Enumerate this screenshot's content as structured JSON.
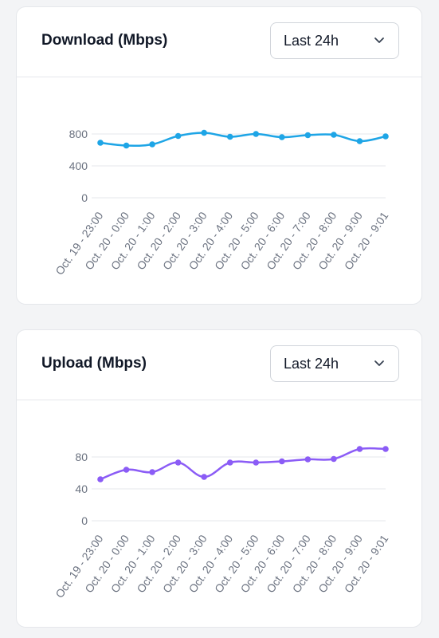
{
  "download": {
    "title": "Download (Mbps)",
    "range_label": "Last 24h"
  },
  "upload": {
    "title": "Upload (Mbps)",
    "range_label": "Last 24h"
  },
  "colors": {
    "download_line": "#1ea5e6",
    "upload_line": "#8b5cf6",
    "grid": "#e5e7eb",
    "tick_text": "#6b7280"
  },
  "chart_data": [
    {
      "type": "line",
      "title": "Download (Mbps)",
      "categories": [
        "Oct. 19 - 23:00",
        "Oct. 20 - 0:00",
        "Oct. 20 - 1:00",
        "Oct. 20 - 2:00",
        "Oct. 20 - 3:00",
        "Oct. 20 - 4:00",
        "Oct. 20 - 5:00",
        "Oct. 20 - 6:00",
        "Oct. 20 - 7:00",
        "Oct. 20 - 8:00",
        "Oct. 20 - 9:00",
        "Oct. 20 - 9:01"
      ],
      "values": [
        690,
        655,
        670,
        775,
        815,
        765,
        800,
        760,
        785,
        790,
        710,
        770
      ],
      "yticks": [
        0,
        400,
        800
      ],
      "ylim": [
        0,
        800
      ],
      "grid": true,
      "legend": "none"
    },
    {
      "type": "line",
      "title": "Upload (Mbps)",
      "categories": [
        "Oct. 19 - 23:00",
        "Oct. 20 - 0:00",
        "Oct. 20 - 1:00",
        "Oct. 20 - 2:00",
        "Oct. 20 - 3:00",
        "Oct. 20 - 4:00",
        "Oct. 20 - 5:00",
        "Oct. 20 - 6:00",
        "Oct. 20 - 7:00",
        "Oct. 20 - 8:00",
        "Oct. 20 - 9:00",
        "Oct. 20 - 9:01"
      ],
      "values": [
        52,
        64,
        61,
        73,
        55,
        73,
        73,
        74.5,
        77,
        77.5,
        90,
        90
      ],
      "yticks": [
        0,
        40,
        80
      ],
      "ylim": [
        0,
        80
      ],
      "grid": true,
      "legend": "none"
    }
  ]
}
